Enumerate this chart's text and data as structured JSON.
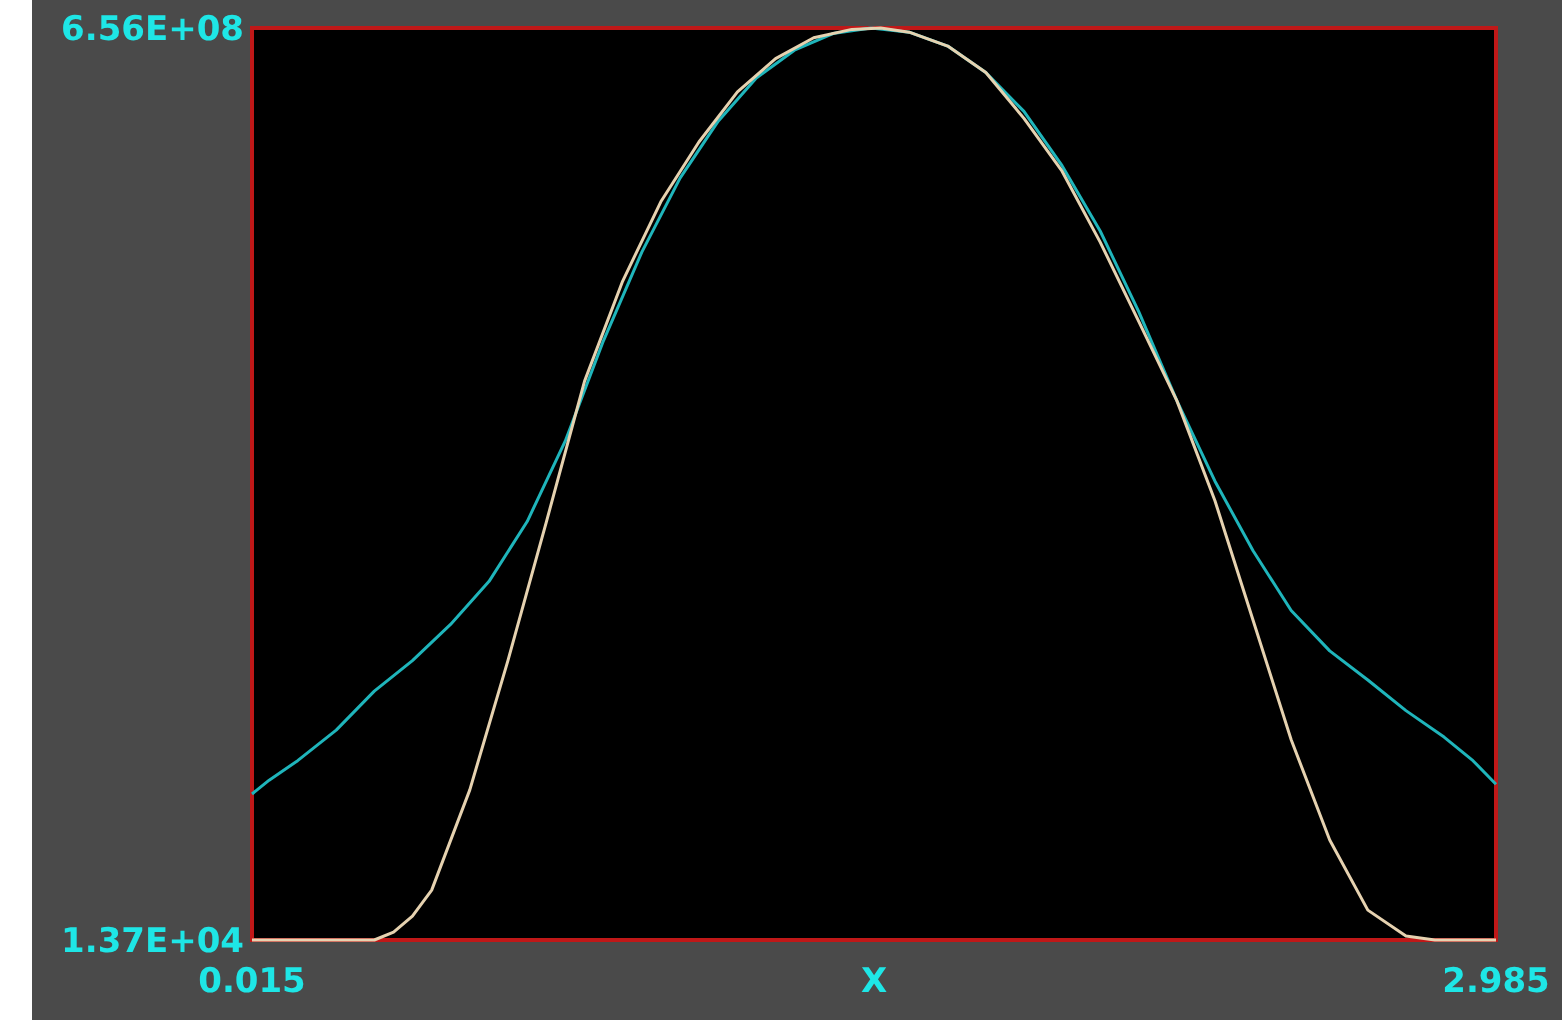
{
  "chart_data": {
    "type": "line",
    "xlabel": "X",
    "xlim": [
      0.015,
      2.985
    ],
    "xticks": [
      0.015,
      2.985
    ],
    "ylim": [
      13700,
      656000000
    ],
    "yticks": [
      {
        "value": 13700,
        "label": "1.37E+04"
      },
      {
        "value": 656000000,
        "label": "6.56E+08"
      }
    ],
    "line_style": "solid",
    "series": [
      {
        "color": "#1fb5bb",
        "x": [
          0.015,
          0.056,
          0.124,
          0.216,
          0.307,
          0.398,
          0.489,
          0.581,
          0.672,
          0.763,
          0.854,
          0.946,
          1.037,
          1.128,
          1.219,
          1.31,
          1.402,
          1.493,
          1.584,
          1.676,
          1.767,
          1.858,
          1.949,
          2.04,
          2.132,
          2.223,
          2.314,
          2.405,
          2.496,
          2.588,
          2.679,
          2.77,
          2.861,
          2.93,
          2.985
        ],
        "values": [
          105000000,
          115000000,
          129000000,
          151000000,
          179000000,
          201000000,
          227000000,
          258000000,
          301000000,
          359000000,
          431000000,
          495000000,
          548000000,
          589000000,
          620000000,
          640000000,
          652000000,
          656000000,
          653000000,
          643000000,
          624000000,
          596000000,
          557000000,
          510000000,
          452000000,
          388000000,
          330000000,
          280000000,
          237000000,
          208000000,
          187000000,
          165000000,
          146000000,
          129000000,
          112000000
        ]
      },
      {
        "color": "#e6d2b0",
        "x": [
          0.015,
          0.307,
          0.353,
          0.398,
          0.444,
          0.535,
          0.626,
          0.718,
          0.809,
          0.9,
          0.991,
          1.082,
          1.174,
          1.265,
          1.356,
          1.447,
          1.516,
          1.584,
          1.676,
          1.767,
          1.858,
          1.949,
          2.04,
          2.132,
          2.223,
          2.314,
          2.405,
          2.496,
          2.588,
          2.679,
          2.77,
          2.839,
          2.985
        ],
        "values": [
          13700,
          13700,
          5700000,
          17200000,
          35900000,
          108000000,
          201000000,
          301000000,
          402000000,
          474000000,
          531000000,
          574000000,
          610000000,
          634000000,
          649000000,
          655000000,
          656000000,
          653000000,
          643000000,
          624000000,
          591000000,
          553000000,
          502000000,
          445000000,
          388000000,
          316000000,
          230000000,
          144000000,
          72000000,
          21500000,
          2900000,
          13700,
          13700
        ]
      }
    ]
  }
}
